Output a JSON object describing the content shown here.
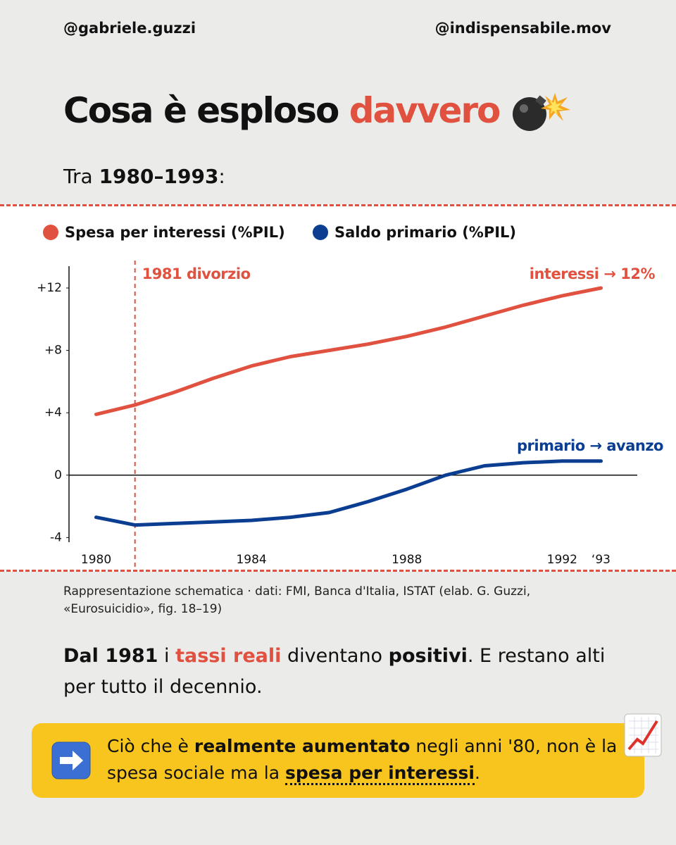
{
  "header": {
    "left": "@gabriele.guzzi",
    "right": "@indispensabile.mov"
  },
  "title": {
    "lead": "Cosa è esploso",
    "highlight": "davvero"
  },
  "subtitle": [
    {
      "text": "Tra "
    },
    {
      "text": "1980–1993",
      "style": "bold"
    },
    {
      "text": ":"
    }
  ],
  "chart_data": {
    "type": "line",
    "x": [
      1980,
      1981,
      1982,
      1983,
      1984,
      1985,
      1986,
      1987,
      1988,
      1989,
      1990,
      1991,
      1992,
      1993
    ],
    "series": [
      {
        "name": "Spesa per interessi (%PIL)",
        "color": "#e05140",
        "values": [
          3.9,
          4.5,
          5.3,
          6.2,
          7.0,
          7.6,
          8.0,
          8.4,
          8.9,
          9.5,
          10.2,
          10.9,
          11.5,
          12.0
        ]
      },
      {
        "name": "Saldo primario (%PIL)",
        "color": "#0b3d91",
        "values": [
          -2.7,
          -3.2,
          -3.1,
          -3.0,
          -2.9,
          -2.7,
          -2.4,
          -1.7,
          -0.9,
          0.0,
          0.6,
          0.8,
          0.9,
          0.9
        ]
      }
    ],
    "xlim": [
      1979.7,
      1993.3
    ],
    "xticks": [
      1980,
      1984,
      1988,
      1992,
      {
        "value": 1993,
        "label": "‘93"
      }
    ],
    "ylim": [
      -4.3,
      13.4
    ],
    "yticks": [
      {
        "value": -4,
        "label": "-4"
      },
      0,
      {
        "value": 4,
        "label": "+4"
      },
      {
        "value": 8,
        "label": "+8"
      },
      {
        "value": 12,
        "label": "+12"
      }
    ],
    "annotations": [
      {
        "text": "1981 divorzio",
        "x": 1981,
        "color": "#e05140"
      },
      {
        "text": "interessi → 12%",
        "color": "#e05140"
      },
      {
        "text": "primario → avanzo",
        "color": "#0b3d91"
      }
    ]
  },
  "caption": "Rappresentazione schematica · dati: FMI, Banca d'Italia, ISTAT (elab. G. Guzzi, «Eurosuicidio», fig. 18–19)",
  "body": [
    {
      "text": "Dal 1981",
      "style": "bold"
    },
    {
      "text": " i "
    },
    {
      "text": "tassi reali",
      "style": "red"
    },
    {
      "text": " diventano "
    },
    {
      "text": "positivi",
      "style": "bold"
    },
    {
      "text": ". E restano alti per tutto il decennio."
    }
  ],
  "callout": [
    {
      "text": "Ciò che è "
    },
    {
      "text": "realmente aumentato",
      "style": "bold"
    },
    {
      "text": " negli anni '80, non è la spesa sociale ma la "
    },
    {
      "text": "spesa per interessi",
      "style": "bold-underline"
    },
    {
      "text": "."
    }
  ]
}
